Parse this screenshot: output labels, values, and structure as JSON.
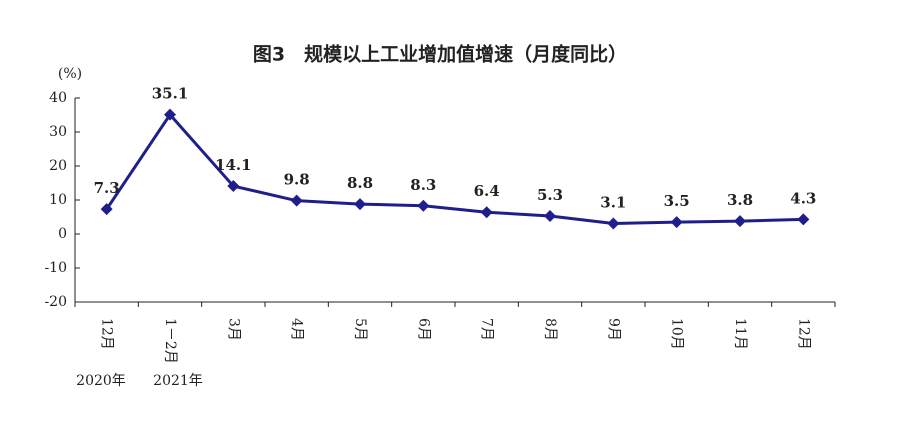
{
  "chart_data": {
    "type": "line",
    "title": "图3　规模以上工业增加值增速（月度同比）",
    "y_unit": "(%)",
    "categories": [
      "12月",
      "1－2月",
      "3月",
      "4月",
      "5月",
      "6月",
      "7月",
      "8月",
      "9月",
      "10月",
      "11月",
      "12月"
    ],
    "year_labels": [
      "2020年",
      "2021年"
    ],
    "series": [
      {
        "name": "规模以上工业增加值增速",
        "color": "#1f1f8c",
        "values": [
          7.3,
          35.1,
          14.1,
          9.8,
          8.8,
          8.3,
          6.4,
          5.3,
          3.1,
          3.5,
          3.8,
          4.3
        ]
      }
    ],
    "ylim": [
      -20,
      40
    ],
    "yticks": [
      -20,
      -10,
      0,
      10,
      20,
      30,
      40
    ],
    "grid": false
  }
}
